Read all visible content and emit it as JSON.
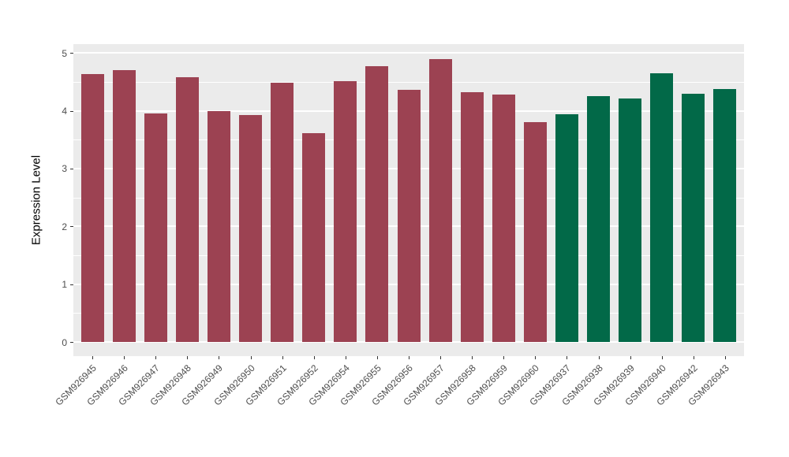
{
  "figure": {
    "background": "#FFFFFF",
    "panel_background": "#EBEBEB",
    "grid_color": "#FFFFFF",
    "tick_label_color": "#4D4D4D",
    "axis_title_color": "#000000",
    "tick_mark_color": "#333333"
  },
  "chart_data": {
    "type": "bar",
    "title": "",
    "xlabel": "",
    "ylabel": "Expression Level",
    "ylim": [
      0,
      5
    ],
    "yticks": [
      0,
      1,
      2,
      3,
      4,
      5
    ],
    "grid": "major and minor horizontal white gridlines on gray panel",
    "legend_position": "none",
    "x_tick_rotation_deg": 45,
    "categories": [
      "GSM926945",
      "GSM926946",
      "GSM926947",
      "GSM926948",
      "GSM926949",
      "GSM926950",
      "GSM926951",
      "GSM926952",
      "GSM926954",
      "GSM926955",
      "GSM926956",
      "GSM926957",
      "GSM926958",
      "GSM926959",
      "GSM926960",
      "GSM926937",
      "GSM926938",
      "GSM926939",
      "GSM926940",
      "GSM926942",
      "GSM926943"
    ],
    "values": [
      4.63,
      4.7,
      3.96,
      4.58,
      3.99,
      3.93,
      4.48,
      3.61,
      4.52,
      4.77,
      4.36,
      4.9,
      4.32,
      4.28,
      3.8,
      3.94,
      4.25,
      4.21,
      4.65,
      4.29,
      4.38
    ],
    "groups": [
      "maroon",
      "maroon",
      "maroon",
      "maroon",
      "maroon",
      "maroon",
      "maroon",
      "maroon",
      "maroon",
      "maroon",
      "maroon",
      "maroon",
      "maroon",
      "maroon",
      "maroon",
      "green",
      "green",
      "green",
      "green",
      "green",
      "green"
    ],
    "group_colors": {
      "maroon": "#9C4252",
      "green": "#026948"
    }
  }
}
